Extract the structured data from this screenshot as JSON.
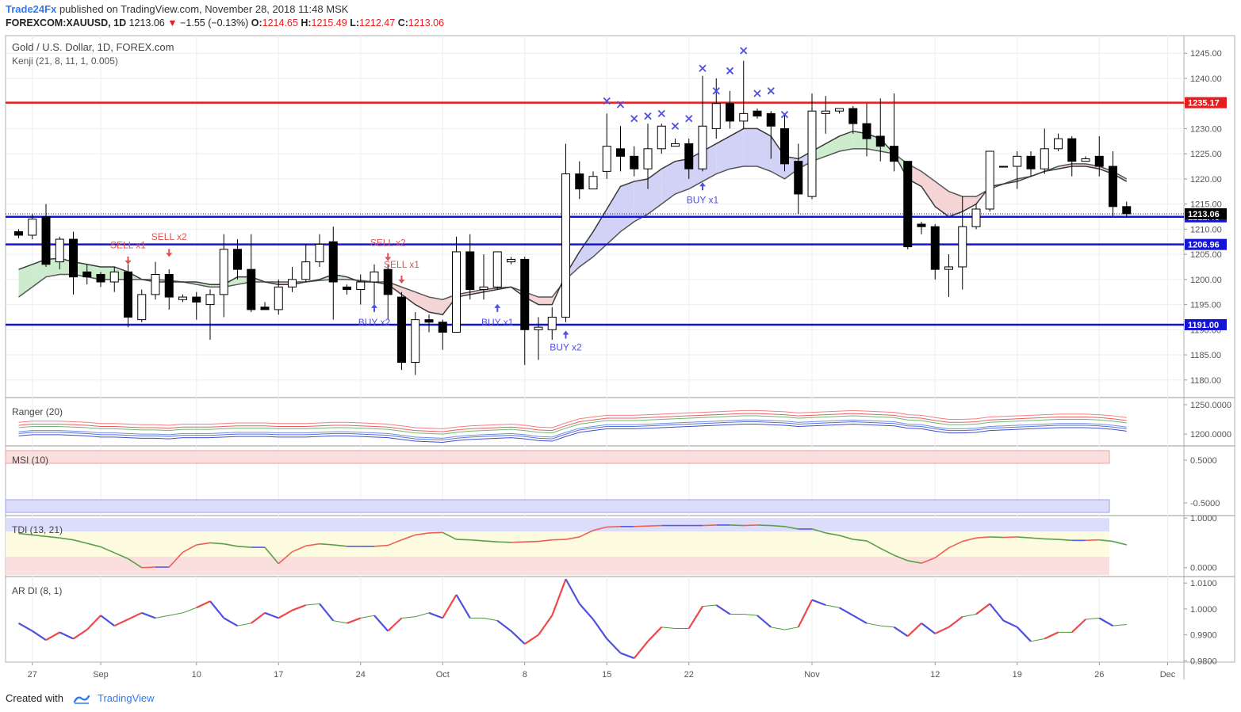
{
  "header": {
    "publisher": "Trade24Fx",
    "published_text": "published on TradingView.com, November 28, 2018 11:48 MSK",
    "symbol": "FOREXCOM:XAUUSD, 1D",
    "last": "1213.06",
    "change": "−1.55 (−0.13%)",
    "o_label": "O:",
    "o_val": "1214.65",
    "h_label": "H:",
    "h_val": "1215.49",
    "l_label": "L:",
    "l_val": "1212.47",
    "c_label": "C:",
    "c_val": "1213.06"
  },
  "footer": {
    "created_with": "Created with",
    "brand": "TradingView"
  },
  "colors": {
    "bull": "#ffffff",
    "bear": "#000000",
    "red_level": "#e81c1c",
    "blue_level": "#1414d4",
    "kenji_line": "#4a4a4a",
    "bull_cloud": "#cdeccd",
    "bear_cloud": "#f4d4d4",
    "blue_cloud": "#d2d2f6",
    "marker_blue": "#5050e0",
    "sell_red": "#e05050",
    "buy_blue": "#5050e0"
  },
  "chart_data": [
    {
      "type": "candlestick",
      "title": "Gold / U.S. Dollar, 1D, FOREX.com",
      "indicator": "Kenji (21, 8, 11, 1, 0.005)",
      "y_ticks": [
        "1245.00",
        "1240.00",
        "1235.00",
        "1230.00",
        "1225.00",
        "1220.00",
        "1215.00",
        "1210.00",
        "1205.00",
        "1200.00",
        "1195.00",
        "1190.00",
        "1185.00",
        "1180.00"
      ],
      "ylim": [
        1176.5,
        1248.5
      ],
      "x_ticks": [
        {
          "label": "27",
          "i": 1
        },
        {
          "label": "Sep",
          "i": 6
        },
        {
          "label": "10",
          "i": 13
        },
        {
          "label": "17",
          "i": 19
        },
        {
          "label": "24",
          "i": 25
        },
        {
          "label": "Oct",
          "i": 31
        },
        {
          "label": "8",
          "i": 37
        },
        {
          "label": "15",
          "i": 43
        },
        {
          "label": "22",
          "i": 49
        },
        {
          "label": "Nov",
          "i": 58
        },
        {
          "label": "12",
          "i": 67
        },
        {
          "label": "19",
          "i": 73
        },
        {
          "label": "26",
          "i": 79
        },
        {
          "label": "Dec",
          "i": 84
        }
      ],
      "levels": [
        {
          "value": 1235.17,
          "label": "1235.17",
          "color": "red"
        },
        {
          "value": 1212.46,
          "label": "1212.46",
          "color": "blue"
        },
        {
          "value": 1206.96,
          "label": "1206.96",
          "color": "blue"
        },
        {
          "value": 1191.0,
          "label": "1191.00",
          "color": "blue"
        }
      ],
      "last_price": {
        "value": 1213.06,
        "label": "1213.06"
      },
      "candles": [
        [
          1209.5,
          1208.8,
          1210,
          1208.2
        ],
        [
          1208.8,
          1212,
          1213,
          1208
        ],
        [
          1212.5,
          1203,
          1215,
          1202.5
        ],
        [
          1203.5,
          1208,
          1208.5,
          1202
        ],
        [
          1208,
          1200.5,
          1209.5,
          1197
        ],
        [
          1201.5,
          1200.5,
          1203,
          1199
        ],
        [
          1201,
          1199.5,
          1201.5,
          1198.5
        ],
        [
          1199.5,
          1201.5,
          1202.5,
          1197.5
        ],
        [
          1201.5,
          1192.5,
          1203,
          1190.5
        ],
        [
          1192,
          1197,
          1198,
          1191.5
        ],
        [
          1197,
          1201,
          1203.5,
          1196
        ],
        [
          1201,
          1196.5,
          1202,
          1194
        ],
        [
          1196,
          1196.5,
          1197,
          1195.5
        ],
        [
          1196.5,
          1195.5,
          1197.5,
          1192
        ],
        [
          1195,
          1197,
          1198,
          1188
        ],
        [
          1197,
          1206,
          1209,
          1192.5
        ],
        [
          1206,
          1202,
          1208,
          1200
        ],
        [
          1202,
          1194,
          1209,
          1193.5
        ],
        [
          1194.5,
          1194,
          1195.5,
          1194
        ],
        [
          1194,
          1198.5,
          1200,
          1193
        ],
        [
          1198.5,
          1200,
          1202.5,
          1197.5
        ],
        [
          1200,
          1203.5,
          1207,
          1199.5
        ],
        [
          1203.5,
          1207,
          1209,
          1202.5
        ],
        [
          1207.5,
          1199.5,
          1210.5,
          1192
        ],
        [
          1198.5,
          1198,
          1199,
          1197
        ],
        [
          1198,
          1199.5,
          1201,
          1195
        ],
        [
          1199.5,
          1201.5,
          1203,
          1194
        ],
        [
          1202,
          1197,
          1203,
          1192
        ],
        [
          1196.5,
          1183.5,
          1197.5,
          1182
        ],
        [
          1183.5,
          1192,
          1193.5,
          1181
        ],
        [
          1192,
          1191.5,
          1193,
          1189.5
        ],
        [
          1191.5,
          1189.5,
          1192,
          1186
        ],
        [
          1189.5,
          1205.5,
          1208.5,
          1189.5
        ],
        [
          1205.5,
          1198,
          1209,
          1196
        ],
        [
          1198,
          1198.5,
          1205,
          1196
        ],
        [
          1198.5,
          1205.5,
          1205.5,
          1198
        ],
        [
          1203.5,
          1204,
          1204.5,
          1203
        ],
        [
          1204,
          1190,
          1204.5,
          1183
        ],
        [
          1190,
          1190.5,
          1192.5,
          1184
        ],
        [
          1190,
          1192.5,
          1194.5,
          1188
        ],
        [
          1192.5,
          1221,
          1227,
          1191.5
        ],
        [
          1221,
          1218,
          1223.5,
          1216
        ],
        [
          1218,
          1220.5,
          1221.5,
          1218
        ],
        [
          1221.5,
          1226.5,
          1233,
          1220
        ],
        [
          1226,
          1224.5,
          1230.5,
          1221.5
        ],
        [
          1224.5,
          1222,
          1226.5,
          1220.5
        ],
        [
          1222,
          1226,
          1231,
          1218
        ],
        [
          1226,
          1230.5,
          1231,
          1225
        ],
        [
          1226.5,
          1227,
          1228,
          1226.5
        ],
        [
          1227,
          1222,
          1228,
          1220
        ],
        [
          1222,
          1230.5,
          1240.5,
          1221.5
        ],
        [
          1230,
          1235,
          1240,
          1228
        ],
        [
          1235,
          1231.5,
          1237.5,
          1230
        ],
        [
          1231.5,
          1233,
          1243.5,
          1230
        ],
        [
          1233.5,
          1232.5,
          1234,
          1232
        ],
        [
          1233,
          1230.5,
          1233.5,
          1224
        ],
        [
          1230,
          1223,
          1233,
          1221.5
        ],
        [
          1223.5,
          1217,
          1227,
          1213
        ],
        [
          1216.5,
          1233.5,
          1237,
          1216
        ],
        [
          1233,
          1233.5,
          1236.5,
          1229
        ],
        [
          1233.5,
          1234,
          1234,
          1233
        ],
        [
          1234,
          1231,
          1234.5,
          1229
        ],
        [
          1231,
          1228,
          1235,
          1224.5
        ],
        [
          1228.5,
          1226.5,
          1236,
          1223.5
        ],
        [
          1226.5,
          1223.5,
          1237,
          1221.5
        ],
        [
          1223.5,
          1206.5,
          1223.5,
          1206
        ],
        [
          1211,
          1210.5,
          1211.5,
          1209
        ],
        [
          1210.5,
          1202,
          1211,
          1200
        ],
        [
          1202,
          1202.5,
          1205,
          1196.5
        ],
        [
          1202.5,
          1210.5,
          1216.5,
          1198
        ],
        [
          1210.5,
          1214,
          1215,
          1210
        ],
        [
          1214,
          1225.5,
          1225.5,
          1213.5
        ],
        [
          1222.5,
          1222.5,
          1222.5,
          1222.5
        ],
        [
          1222.5,
          1224.5,
          1225.5,
          1218
        ],
        [
          1224.5,
          1222,
          1225.5,
          1220.5
        ],
        [
          1222,
          1226,
          1230,
          1221
        ],
        [
          1226,
          1228,
          1229,
          1225.5
        ],
        [
          1228,
          1223.5,
          1228.5,
          1220.5
        ],
        [
          1223.5,
          1224,
          1224.5,
          1223.5
        ],
        [
          1224.5,
          1222.5,
          1228.5,
          1220.5
        ],
        [
          1222.5,
          1214.5,
          1225.5,
          1212.5
        ],
        [
          1214.5,
          1213.06,
          1215.49,
          1212.47
        ]
      ],
      "kenji_fast": [
        1202,
        1203,
        1204,
        1204.2,
        1203.5,
        1203,
        1202.5,
        1202.5,
        1201.5,
        1200,
        1199.5,
        1199.5,
        1199.5,
        1199.5,
        1199,
        1199,
        1200.5,
        1200.5,
        1199.5,
        1199,
        1199,
        1199.5,
        1200,
        1201,
        1200.5,
        1199.5,
        1199.5,
        1199,
        1197,
        1195,
        1193.5,
        1193,
        1196.5,
        1197,
        1197.5,
        1198,
        1198.5,
        1196.5,
        1195,
        1195,
        1201,
        1205.5,
        1209.5,
        1214,
        1218.5,
        1219.5,
        1220,
        1222,
        1223.5,
        1224,
        1225.5,
        1227,
        1228.5,
        1230,
        1230,
        1228.5,
        1224.5,
        1224,
        1225.5,
        1227,
        1228.5,
        1229.5,
        1229,
        1228,
        1225,
        1220,
        1218.5,
        1214.5,
        1212.5,
        1213.5,
        1215,
        1218.5,
        1219,
        1219.5,
        1220.5,
        1221.5,
        1222,
        1222.5,
        1222.5,
        1222,
        1221,
        1219.5
      ],
      "kenji_slow": [
        1196.5,
        1198.5,
        1200.5,
        1201,
        1201,
        1200.5,
        1200,
        1200,
        1200,
        1200,
        1200,
        1199.8,
        1199.5,
        1199,
        1198.5,
        1198.5,
        1199,
        1199.5,
        1199.5,
        1199.5,
        1199.5,
        1199.5,
        1199.8,
        1200,
        1200,
        1199.8,
        1199.5,
        1199.5,
        1198.5,
        1197.5,
        1196.5,
        1196,
        1197,
        1197.5,
        1198,
        1198.3,
        1198.5,
        1197.5,
        1196.5,
        1196.5,
        1200,
        1202.5,
        1204.5,
        1207,
        1209.5,
        1211.5,
        1213,
        1215,
        1217,
        1218,
        1219.5,
        1221,
        1222,
        1222.5,
        1222.5,
        1221.5,
        1220,
        1222,
        1223.5,
        1224.5,
        1225.5,
        1226,
        1226,
        1225.5,
        1225,
        1223,
        1221.5,
        1219.5,
        1217.5,
        1216.5,
        1216.5,
        1218,
        1219,
        1220,
        1220.5,
        1221.5,
        1222.5,
        1223,
        1223,
        1222.5,
        1221.5,
        1220
      ],
      "x_markers": [
        {
          "i": 43,
          "y": 1235.5
        },
        {
          "i": 44,
          "y": 1234.8
        },
        {
          "i": 45,
          "y": 1232
        },
        {
          "i": 46,
          "y": 1232.5
        },
        {
          "i": 47,
          "y": 1233
        },
        {
          "i": 48,
          "y": 1230.5
        },
        {
          "i": 49,
          "y": 1232
        },
        {
          "i": 50,
          "y": 1242
        },
        {
          "i": 51,
          "y": 1237.5
        },
        {
          "i": 52,
          "y": 1241.5
        },
        {
          "i": 53,
          "y": 1245.5
        },
        {
          "i": 54,
          "y": 1237
        },
        {
          "i": 55,
          "y": 1237.5
        },
        {
          "i": 56,
          "y": 1232.8
        }
      ],
      "signals": [
        {
          "i": 8,
          "kind": "sell",
          "text": "SELL x1",
          "arrow_y": 1203.3,
          "text_y": 1206.8
        },
        {
          "i": 11,
          "kind": "sell",
          "text": "SELL x2",
          "arrow_y": 1204.8,
          "text_y": 1208.5
        },
        {
          "i": 27,
          "kind": "sell",
          "text": "SELL x2",
          "arrow_y": 1204,
          "text_y": 1207.3
        },
        {
          "i": 28,
          "kind": "sell",
          "text": "SELL x1",
          "arrow_y": 1199.5,
          "text_y": 1203
        },
        {
          "i": 26,
          "kind": "buy",
          "text": "BUY x2",
          "arrow_y": 1194.8,
          "text_y": 1191.5
        },
        {
          "i": 35,
          "kind": "buy",
          "text": "BUY x1",
          "arrow_y": 1194.8,
          "text_y": 1191.5
        },
        {
          "i": 40,
          "kind": "buy",
          "text": "BUY x2",
          "arrow_y": 1189.5,
          "text_y": 1186.5
        },
        {
          "i": 50,
          "kind": "buy",
          "text": "BUY x1",
          "arrow_y": 1219,
          "text_y": 1215.8
        }
      ]
    },
    {
      "type": "line",
      "title": "Ranger (20)",
      "y_ticks": [
        "1250.0000",
        "1200.0000"
      ],
      "ylim": [
        1180,
        1262
      ],
      "series_base": [
        1206,
        1208,
        1208,
        1208,
        1207,
        1206,
        1204,
        1204,
        1203,
        1202,
        1202,
        1201,
        1203,
        1203,
        1203,
        1204,
        1205,
        1205,
        1205,
        1204,
        1204,
        1204,
        1205,
        1206,
        1206,
        1205,
        1204,
        1203,
        1200,
        1197,
        1196,
        1195,
        1198,
        1200,
        1201,
        1202,
        1203,
        1201,
        1198,
        1197,
        1205,
        1212,
        1215,
        1218,
        1218,
        1218,
        1219,
        1220,
        1221,
        1222,
        1223,
        1224,
        1225,
        1226,
        1226,
        1225,
        1224,
        1222,
        1223,
        1224,
        1225,
        1226,
        1225,
        1224,
        1223,
        1219,
        1218,
        1214,
        1211,
        1211,
        1212,
        1215,
        1216,
        1217,
        1218,
        1219,
        1220,
        1220,
        1220,
        1219,
        1217,
        1214
      ],
      "offsets": [
        14,
        9,
        5,
        -2,
        -5,
        -9
      ]
    },
    {
      "type": "area",
      "title": "MSI (10)",
      "y_ticks": [
        "0.5000",
        "-0.5000"
      ],
      "bands": [
        "0.5000",
        "-0.5000"
      ]
    },
    {
      "type": "line",
      "title": "TDI (13, 21)",
      "y_ticks": [
        "1.0000",
        "0.0000"
      ],
      "ylim": [
        -0.18,
        1.05
      ],
      "values": [
        0.69,
        0.66,
        0.63,
        0.6,
        0.56,
        0.49,
        0.42,
        0.3,
        0.18,
        0.0,
        0.01,
        0.01,
        0.31,
        0.46,
        0.5,
        0.48,
        0.43,
        0.41,
        0.41,
        0.08,
        0.32,
        0.44,
        0.48,
        0.46,
        0.43,
        0.43,
        0.43,
        0.45,
        0.56,
        0.66,
        0.7,
        0.71,
        0.57,
        0.56,
        0.54,
        0.52,
        0.51,
        0.52,
        0.53,
        0.56,
        0.57,
        0.62,
        0.75,
        0.82,
        0.83,
        0.83,
        0.84,
        0.85,
        0.85,
        0.85,
        0.85,
        0.86,
        0.86,
        0.85,
        0.86,
        0.85,
        0.83,
        0.78,
        0.78,
        0.7,
        0.65,
        0.57,
        0.54,
        0.39,
        0.25,
        0.14,
        0.09,
        0.2,
        0.4,
        0.53,
        0.6,
        0.62,
        0.61,
        0.62,
        0.6,
        0.58,
        0.57,
        0.55,
        0.55,
        0.56,
        0.53,
        0.46
      ]
    },
    {
      "type": "line",
      "title": "AR DI (8, 1)",
      "y_ticks": [
        "1.0100",
        "1.0000",
        "0.9900",
        "0.9800"
      ],
      "ylim": [
        0.9795,
        1.0125
      ],
      "values": [
        0.9945,
        0.9915,
        0.988,
        0.991,
        0.9885,
        0.992,
        0.9975,
        0.9935,
        0.996,
        0.9985,
        0.9965,
        0.9975,
        0.9985,
        1.0005,
        1.003,
        0.9965,
        0.9935,
        0.9945,
        0.9985,
        0.9965,
        0.9995,
        1.0015,
        1.002,
        0.9955,
        0.9945,
        0.9965,
        0.9975,
        0.9915,
        0.9965,
        0.997,
        0.9985,
        0.9965,
        1.0055,
        0.9965,
        0.9965,
        0.9955,
        0.9915,
        0.9865,
        0.99,
        0.9975,
        1.0115,
        1.002,
        0.996,
        0.9885,
        0.983,
        0.981,
        0.9875,
        0.993,
        0.9925,
        0.9925,
        1.001,
        1.0015,
        0.998,
        0.998,
        0.9975,
        0.993,
        0.992,
        0.993,
        1.0035,
        1.0015,
        1.0005,
        0.9975,
        0.9945,
        0.9935,
        0.993,
        0.9895,
        0.9945,
        0.9905,
        0.993,
        0.997,
        0.998,
        1.002,
        0.9955,
        0.993,
        0.9875,
        0.9885,
        0.991,
        0.991,
        0.996,
        0.9965,
        0.9935,
        0.994
      ]
    }
  ]
}
